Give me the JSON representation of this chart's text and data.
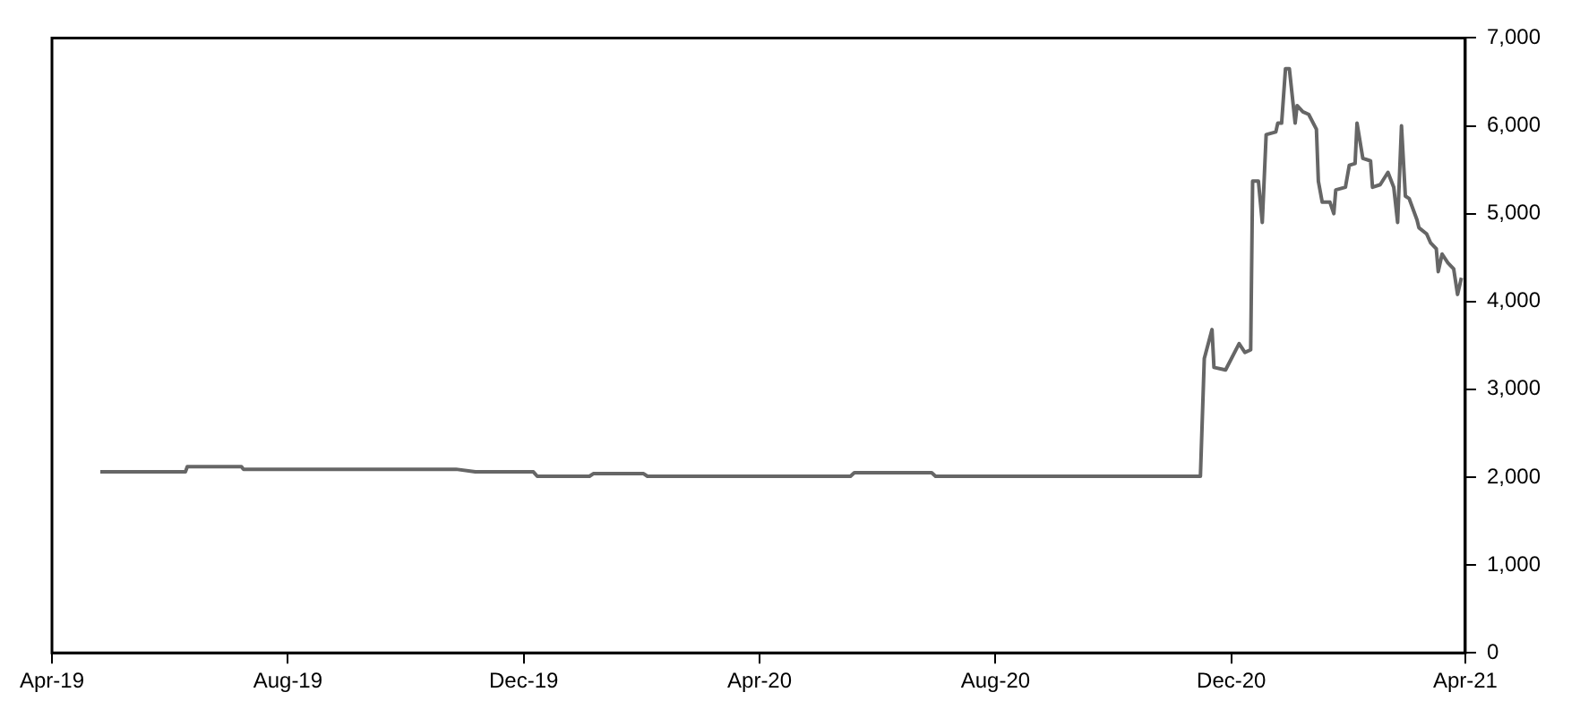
{
  "chart_data": {
    "type": "line",
    "x": [
      "2019-04-26",
      "2019-06-09",
      "2019-06-10",
      "2019-07-08",
      "2019-07-09",
      "2019-10-27",
      "2019-11-06",
      "2019-12-06",
      "2019-12-08",
      "2020-01-04",
      "2020-01-06",
      "2020-02-01",
      "2020-02-03",
      "2020-05-18",
      "2020-05-20",
      "2020-06-29",
      "2020-07-01",
      "2020-11-15",
      "2020-11-17",
      "2020-11-21",
      "2020-11-22",
      "2020-11-28",
      "2020-12-05",
      "2020-12-08",
      "2020-12-11",
      "2020-12-12",
      "2020-12-15",
      "2020-12-17",
      "2020-12-19",
      "2020-12-24",
      "2020-12-25",
      "2020-12-27",
      "2020-12-29",
      "2020-12-31",
      "2021-01-03",
      "2021-01-04",
      "2021-01-07",
      "2021-01-10",
      "2021-01-14",
      "2021-01-15",
      "2021-01-17",
      "2021-01-21",
      "2021-01-23",
      "2021-01-24",
      "2021-01-29",
      "2021-01-31",
      "2021-02-03",
      "2021-02-04",
      "2021-02-07",
      "2021-02-11",
      "2021-02-12",
      "2021-02-16",
      "2021-02-20",
      "2021-02-23",
      "2021-02-25",
      "2021-02-27",
      "2021-03-01",
      "2021-03-03",
      "2021-03-07",
      "2021-03-08",
      "2021-03-12",
      "2021-03-14",
      "2021-03-17",
      "2021-03-18",
      "2021-03-20",
      "2021-03-23",
      "2021-03-26",
      "2021-03-28",
      "2021-03-30"
    ],
    "series": [
      {
        "color": "#666666",
        "values": [
          2060,
          2060,
          2120,
          2120,
          2090,
          2090,
          2060,
          2060,
          2010,
          2010,
          2040,
          2040,
          2010,
          2010,
          2050,
          2050,
          2010,
          2010,
          3350,
          3680,
          3250,
          3220,
          3520,
          3420,
          3450,
          5370,
          5370,
          4900,
          5900,
          5930,
          6030,
          6030,
          6650,
          6650,
          6030,
          6230,
          6160,
          6130,
          5960,
          5370,
          5130,
          5130,
          5000,
          5270,
          5300,
          5550,
          5570,
          6030,
          5630,
          5600,
          5300,
          5330,
          5470,
          5300,
          4900,
          6000,
          5200,
          5170,
          4930,
          4840,
          4770,
          4670,
          4600,
          4340,
          4540,
          4440,
          4370,
          4080,
          4270
        ]
      }
    ],
    "xlim": [
      "2019-04",
      "2021-04"
    ],
    "xticks": [
      {
        "value": "2019-04",
        "label": "Apr-19"
      },
      {
        "value": "2019-08",
        "label": "Aug-19"
      },
      {
        "value": "2019-12",
        "label": "Dec-19"
      },
      {
        "value": "2020-04",
        "label": "Apr-20"
      },
      {
        "value": "2020-08",
        "label": "Aug-20"
      },
      {
        "value": "2020-12",
        "label": "Dec-20"
      },
      {
        "value": "2021-04",
        "label": "Apr-21"
      }
    ],
    "ylim": [
      0,
      7000
    ],
    "yticks": [
      0,
      {
        "value": 1000,
        "label": "1,000"
      },
      {
        "value": 2000,
        "label": "2,000"
      },
      {
        "value": 3000,
        "label": "3,000"
      },
      {
        "value": 4000,
        "label": "4,000"
      },
      {
        "value": 5000,
        "label": "5,000"
      },
      {
        "value": 6000,
        "label": "6,000"
      },
      {
        "value": 7000,
        "label": "7,000"
      }
    ],
    "grid": false,
    "legend": false,
    "marker": "none",
    "line_style": "solid"
  }
}
